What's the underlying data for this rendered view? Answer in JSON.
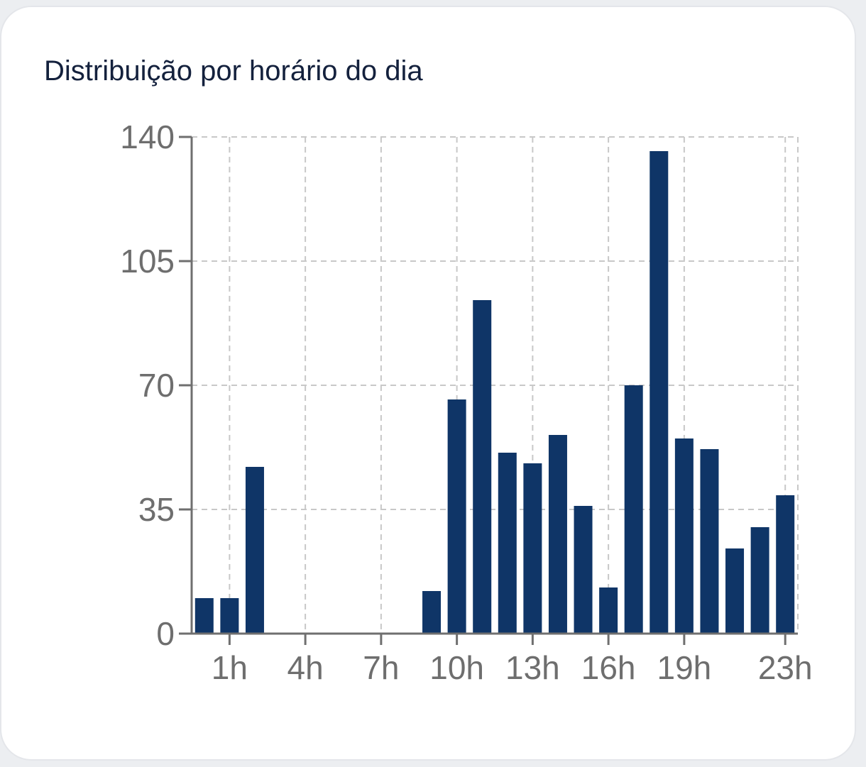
{
  "card": {
    "title": "Distribuição por horário do dia"
  },
  "colors": {
    "bar": "#0f3567",
    "axis": "#6f6f6f",
    "grid": "#c8c8c8",
    "title": "#14213d",
    "tick_label": "#6e6e6e"
  },
  "chart_data": {
    "type": "bar",
    "title": "Distribuição por horário do dia",
    "xlabel": "",
    "ylabel": "",
    "categories": [
      "0h",
      "1h",
      "2h",
      "3h",
      "4h",
      "5h",
      "6h",
      "7h",
      "8h",
      "9h",
      "10h",
      "11h",
      "12h",
      "13h",
      "14h",
      "15h",
      "16h",
      "17h",
      "18h",
      "19h",
      "20h",
      "21h",
      "22h",
      "23h"
    ],
    "values": [
      10,
      10,
      47,
      0,
      0,
      0,
      0,
      0,
      0,
      12,
      66,
      94,
      51,
      48,
      56,
      36,
      13,
      70,
      136,
      55,
      52,
      24,
      30,
      39
    ],
    "ylim": [
      0,
      140
    ],
    "yticks": [
      0,
      35,
      70,
      105,
      140
    ],
    "xtick_labels": [
      "1h",
      "4h",
      "7h",
      "10h",
      "13h",
      "16h",
      "19h",
      "23h"
    ],
    "grid": true,
    "legend": "none"
  }
}
